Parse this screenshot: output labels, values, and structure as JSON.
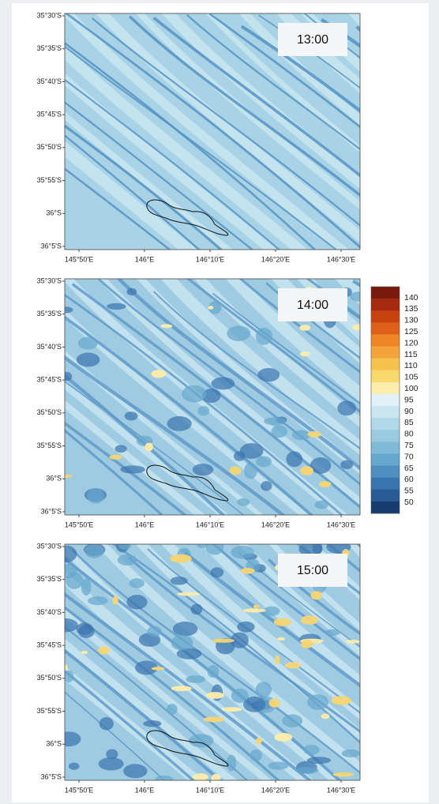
{
  "panels": [
    {
      "time": "13:00",
      "lat_labels": [
        "35°30'S",
        "35°35'S",
        "35°40'S",
        "35°45'S",
        "35°50'S",
        "35°55'S",
        "36°S",
        "36°5'S"
      ],
      "lon_labels": [
        "145°50'E",
        "146°E",
        "146°10'E",
        "146°20'E",
        "146°30'E"
      ]
    },
    {
      "time": "14:00",
      "lat_labels": [
        "35°30'S",
        "35°35'S",
        "35°40'S",
        "35°45'S",
        "35°50'S",
        "35°55'S",
        "36°S",
        "36°5'S"
      ],
      "lon_labels": [
        "145°50'E",
        "146°E",
        "146°10'E",
        "146°20'E",
        "146°30'E"
      ]
    },
    {
      "time": "15:00",
      "lat_labels": [
        "35°30'S",
        "35°35'S",
        "35°40'S",
        "35°45'S",
        "35°50'S",
        "35°55'S",
        "36°S",
        "36°5'S"
      ],
      "lon_labels": [
        "145°50'E",
        "146°E",
        "146°10'E",
        "146°20'E",
        "146°30'E"
      ]
    }
  ],
  "colorbar": {
    "labels": [
      140,
      135,
      130,
      125,
      120,
      115,
      110,
      105,
      100,
      95,
      90,
      85,
      80,
      75,
      70,
      65,
      60,
      55,
      50
    ],
    "colors": [
      "#7a1a0f",
      "#a32a0e",
      "#c7420f",
      "#e0601a",
      "#ee8526",
      "#f3a43a",
      "#f7c34f",
      "#fad96c",
      "#fdecaa",
      "#e2f1f5",
      "#c9e6f0",
      "#b0d8e8",
      "#9acbe1",
      "#80bad8",
      "#67a6cd",
      "#4f8fc0",
      "#3a74ae",
      "#285a96",
      "#163c70"
    ]
  }
}
